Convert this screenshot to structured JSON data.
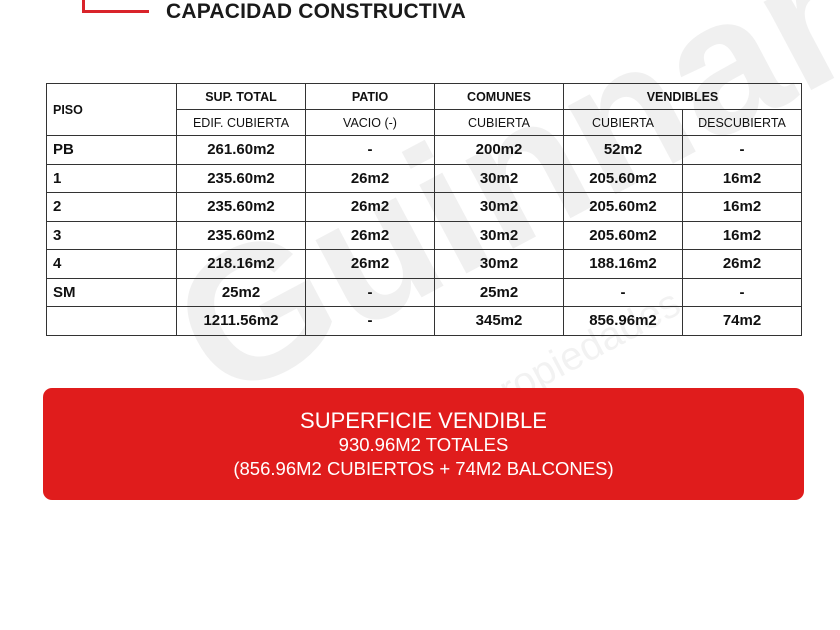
{
  "title": "CAPACIDAD CONSTRUCTIVA",
  "watermark": {
    "brand": "Guinnart",
    "sub": "propiedades"
  },
  "accent_color": "#e01c1c",
  "table": {
    "header_top": [
      "PISO",
      "SUP. TOTAL",
      "PATIO",
      "COMUNES",
      "VENDIBLES"
    ],
    "header_sub": [
      "EDIF. CUBIERTA",
      "VACIO (-)",
      "CUBIERTA",
      "CUBIERTA",
      "DESCUBIERTA"
    ],
    "rows": [
      [
        "PB",
        "261.60m2",
        "-",
        "200m2",
        "52m2",
        "-"
      ],
      [
        "1",
        "235.60m2",
        "26m2",
        "30m2",
        "205.60m2",
        "16m2"
      ],
      [
        "2",
        "235.60m2",
        "26m2",
        "30m2",
        "205.60m2",
        "16m2"
      ],
      [
        "3",
        "235.60m2",
        "26m2",
        "30m2",
        "205.60m2",
        "16m2"
      ],
      [
        "4",
        "218.16m2",
        "26m2",
        "30m2",
        "188.16m2",
        "26m2"
      ],
      [
        "SM",
        "25m2",
        "-",
        "25m2",
        "-",
        "-"
      ],
      [
        "",
        "1211.56m2",
        "-",
        "345m2",
        "856.96m2",
        "74m2"
      ]
    ]
  },
  "banner": {
    "line1": "SUPERFICIE VENDIBLE",
    "line2": "930.96M2 TOTALES",
    "line3": "(856.96M2 CUBIERTOS + 74M2 BALCONES)"
  }
}
